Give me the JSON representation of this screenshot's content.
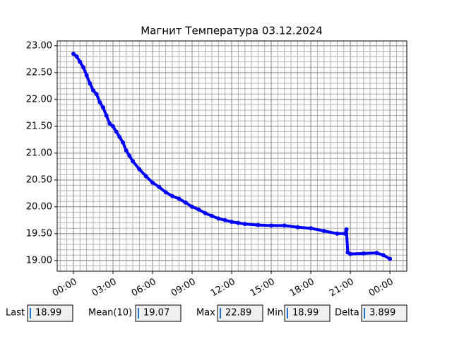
{
  "chart_data": {
    "type": "line",
    "title": "Магнит Температура 03.12.2024",
    "x": [
      0,
      0.25,
      0.5,
      0.75,
      1,
      1.25,
      1.5,
      1.75,
      2,
      2.25,
      2.5,
      2.75,
      3,
      3.25,
      3.5,
      3.75,
      4,
      4.25,
      4.5,
      5,
      5.5,
      6,
      6.5,
      7,
      7.5,
      8,
      8.5,
      9,
      9.5,
      10,
      10.5,
      11,
      11.5,
      12,
      12.5,
      13,
      14,
      15,
      16,
      17,
      18,
      19,
      20,
      20.6,
      20.7,
      20.8,
      21,
      22,
      23,
      23.5,
      24
    ],
    "series": [
      {
        "name": "Температура",
        "color": "#0000ff",
        "values": [
          22.85,
          22.8,
          22.7,
          22.6,
          22.45,
          22.3,
          22.17,
          22.1,
          21.95,
          21.85,
          21.7,
          21.55,
          21.5,
          21.4,
          21.3,
          21.2,
          21.05,
          20.95,
          20.85,
          20.7,
          20.57,
          20.45,
          20.37,
          20.27,
          20.2,
          20.15,
          20.08,
          20.0,
          19.95,
          19.88,
          19.83,
          19.78,
          19.75,
          19.72,
          19.7,
          19.68,
          19.66,
          19.65,
          19.65,
          19.62,
          19.6,
          19.55,
          19.5,
          19.5,
          19.58,
          19.15,
          19.12,
          19.13,
          19.14,
          19.1,
          19.03
        ]
      }
    ],
    "xlim": [
      -1.23,
      25.28
    ],
    "ylim": [
      18.8,
      23.09
    ],
    "xticks": [
      {
        "value": 0,
        "label": "00:00"
      },
      {
        "value": 3,
        "label": "03:00"
      },
      {
        "value": 6,
        "label": "06:00"
      },
      {
        "value": 9,
        "label": "09:00"
      },
      {
        "value": 12,
        "label": "12:00"
      },
      {
        "value": 15,
        "label": "15:00"
      },
      {
        "value": 18,
        "label": "18:00"
      },
      {
        "value": 21,
        "label": "21:00"
      },
      {
        "value": 24,
        "label": "00:00"
      }
    ],
    "yticks": [
      {
        "value": 19,
        "label": "19.00"
      },
      {
        "value": 19.5,
        "label": "19.50"
      },
      {
        "value": 20,
        "label": "20.00"
      },
      {
        "value": 20.5,
        "label": "20.50"
      },
      {
        "value": 21,
        "label": "21.00"
      },
      {
        "value": 21.5,
        "label": "21.50"
      },
      {
        "value": 22,
        "label": "22.00"
      },
      {
        "value": 22.5,
        "label": "22.50"
      },
      {
        "value": 23,
        "label": "23.00"
      }
    ],
    "grid": true
  },
  "fields": [
    {
      "label": "Last",
      "value": 18.99
    },
    {
      "label": "Mean(10)",
      "value": 19.07
    },
    {
      "label": "Max",
      "value": 22.89
    },
    {
      "label": "Min",
      "value": 18.99
    },
    {
      "label": "Delta",
      "value": 3.899
    }
  ]
}
